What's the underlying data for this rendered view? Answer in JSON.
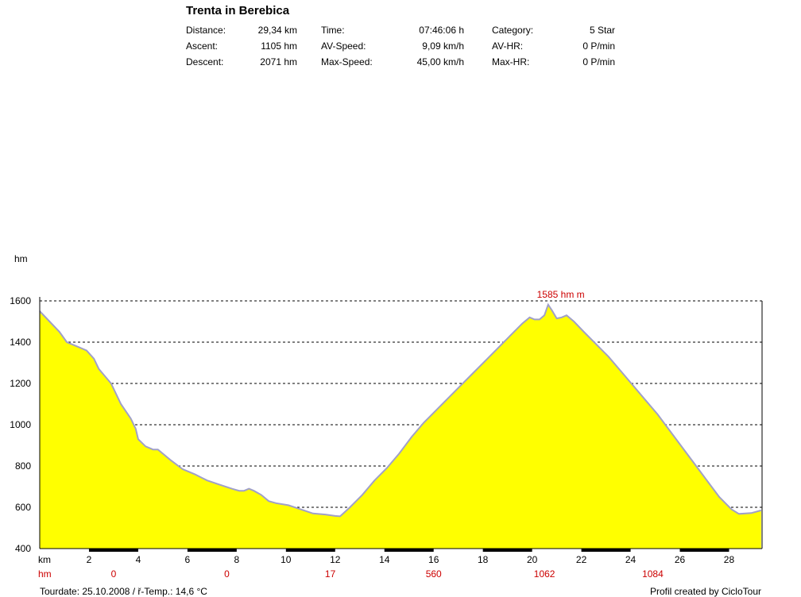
{
  "header": {
    "title": "Trenta in Berebica",
    "stats": [
      {
        "label": "Distance:",
        "value": "29,34 km"
      },
      {
        "label": "Ascent:",
        "value": "1105 hm"
      },
      {
        "label": "Descent:",
        "value": "2071 hm"
      },
      {
        "label": "Time:",
        "value": "07:46:06 h"
      },
      {
        "label": "AV-Speed:",
        "value": "9,09 km/h"
      },
      {
        "label": "Max-Speed:",
        "value": "45,00 km/h"
      },
      {
        "label": "Category:",
        "value": "5 Star"
      },
      {
        "label": "AV-HR:",
        "value": "0 P/min"
      },
      {
        "label": "Max-HR:",
        "value": "0 P/min"
      }
    ]
  },
  "footer": {
    "tourdate": "Tourdate: 25.10.2008  /  ř-Temp.: 14,6 °C",
    "credit": "Profil created by CicloTour"
  },
  "colors": {
    "fill": "#ffff00",
    "line": "#a0a0c8",
    "grid": "#000000",
    "accent": "#cc0000"
  },
  "chart_data": {
    "type": "area",
    "ylabel": "hm",
    "xlabel": "km",
    "ylim": [
      400,
      1600
    ],
    "xlim": [
      0,
      29.34
    ],
    "yticks": [
      400,
      600,
      800,
      1000,
      1200,
      1400,
      1600
    ],
    "xticks": [
      2,
      4,
      6,
      8,
      10,
      12,
      14,
      16,
      18,
      20,
      22,
      24,
      26,
      28
    ],
    "max_label": "1585 hm m",
    "max_point": {
      "x": 20.0,
      "y": 1585
    },
    "hm_row_label": "hm",
    "hm_row": [
      {
        "x": 3,
        "label": "0"
      },
      {
        "x": 7.6,
        "label": "0"
      },
      {
        "x": 11.8,
        "label": "17"
      },
      {
        "x": 16.0,
        "label": "560"
      },
      {
        "x": 20.5,
        "label": "1062"
      },
      {
        "x": 24.9,
        "label": "1084"
      }
    ],
    "profile": [
      [
        0,
        1550
      ],
      [
        0.4,
        1500
      ],
      [
        0.8,
        1450
      ],
      [
        1.1,
        1400
      ],
      [
        1.5,
        1380
      ],
      [
        1.9,
        1360
      ],
      [
        2.2,
        1320
      ],
      [
        2.4,
        1270
      ],
      [
        2.9,
        1200
      ],
      [
        3.3,
        1100
      ],
      [
        3.7,
        1030
      ],
      [
        3.9,
        980
      ],
      [
        4.0,
        930
      ],
      [
        4.3,
        895
      ],
      [
        4.6,
        880
      ],
      [
        4.8,
        880
      ],
      [
        5.3,
        830
      ],
      [
        5.8,
        785
      ],
      [
        6.3,
        760
      ],
      [
        6.8,
        730
      ],
      [
        7.3,
        710
      ],
      [
        7.8,
        690
      ],
      [
        8.1,
        680
      ],
      [
        8.3,
        680
      ],
      [
        8.5,
        690
      ],
      [
        8.7,
        680
      ],
      [
        9.0,
        660
      ],
      [
        9.3,
        630
      ],
      [
        9.6,
        620
      ],
      [
        10.1,
        610
      ],
      [
        10.6,
        590
      ],
      [
        11.1,
        570
      ],
      [
        11.6,
        565
      ],
      [
        12.0,
        558
      ],
      [
        12.2,
        556
      ],
      [
        12.6,
        600
      ],
      [
        13.1,
        660
      ],
      [
        13.6,
        730
      ],
      [
        14.1,
        790
      ],
      [
        14.6,
        860
      ],
      [
        15.1,
        940
      ],
      [
        15.6,
        1010
      ],
      [
        16.1,
        1070
      ],
      [
        16.6,
        1130
      ],
      [
        17.1,
        1190
      ],
      [
        17.6,
        1250
      ],
      [
        18.1,
        1310
      ],
      [
        18.6,
        1370
      ],
      [
        19.1,
        1430
      ],
      [
        19.6,
        1490
      ],
      [
        19.9,
        1520
      ],
      [
        20.1,
        1510
      ],
      [
        20.3,
        1510
      ],
      [
        20.5,
        1530
      ],
      [
        20.65,
        1582
      ],
      [
        20.8,
        1555
      ],
      [
        21.0,
        1515
      ],
      [
        21.2,
        1520
      ],
      [
        21.4,
        1530
      ],
      [
        21.7,
        1500
      ],
      [
        22.1,
        1450
      ],
      [
        22.6,
        1390
      ],
      [
        23.1,
        1330
      ],
      [
        23.6,
        1260
      ],
      [
        24.1,
        1190
      ],
      [
        24.6,
        1120
      ],
      [
        25.1,
        1050
      ],
      [
        25.6,
        970
      ],
      [
        26.1,
        890
      ],
      [
        26.6,
        810
      ],
      [
        27.1,
        730
      ],
      [
        27.6,
        650
      ],
      [
        28.1,
        590
      ],
      [
        28.4,
        568
      ],
      [
        28.9,
        572
      ],
      [
        29.3,
        585
      ]
    ]
  }
}
